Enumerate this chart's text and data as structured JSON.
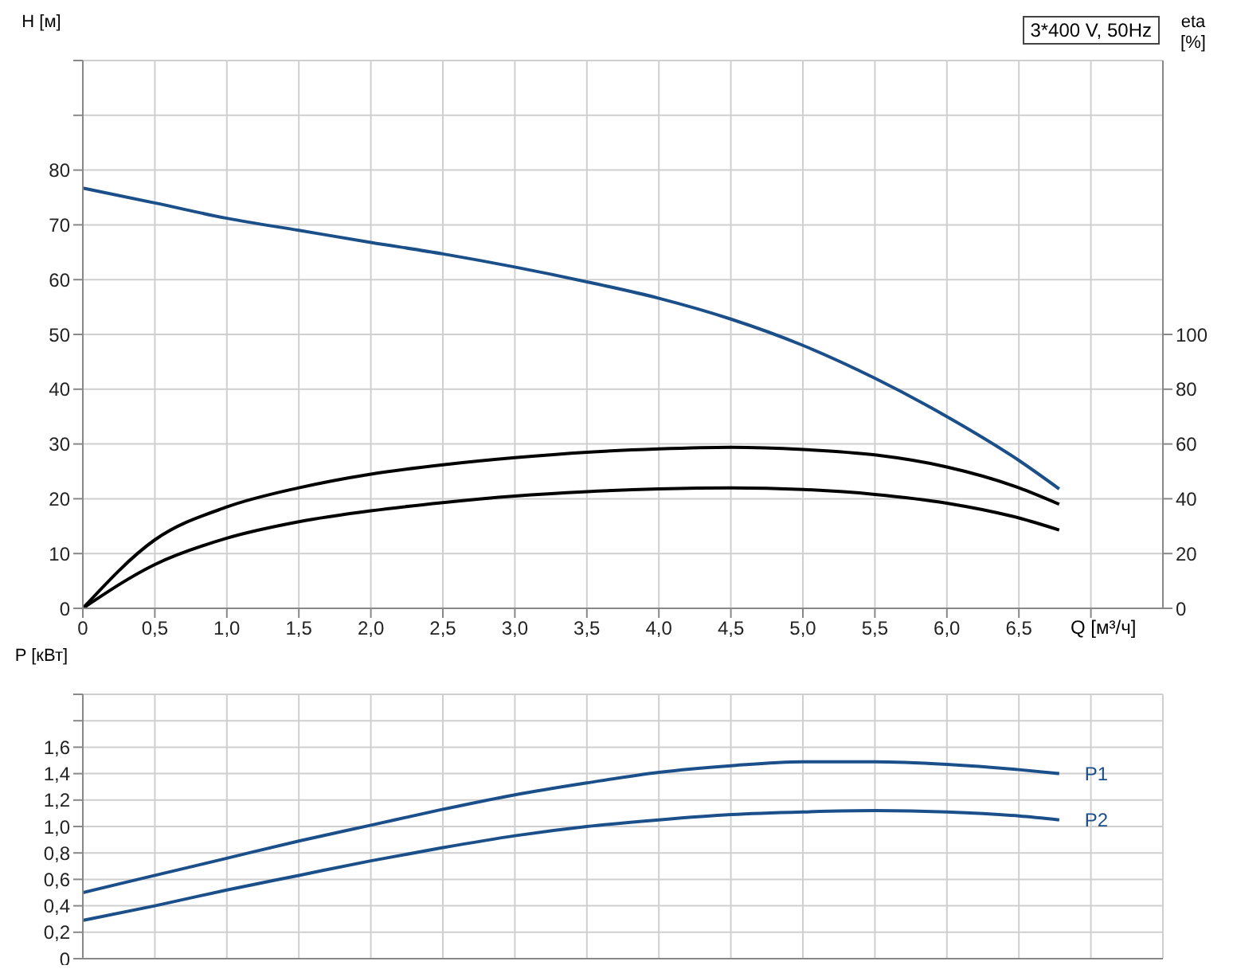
{
  "chart_data": [
    {
      "type": "line",
      "title": "3*400 V, 50Hz",
      "xlabel": "Q [м³/ч]",
      "ylabel": "H [м]",
      "y2label": "eta [%]",
      "grid": true,
      "x": [
        0,
        0.5,
        1,
        1.5,
        2,
        2.5,
        3,
        3.5,
        4,
        4.5,
        5,
        5.5,
        6,
        6.5,
        6.78
      ],
      "xlim": [
        0,
        7.5
      ],
      "xticks": [
        0,
        {
          "value": 0.5,
          "label": "0,5"
        },
        {
          "value": 1,
          "label": "1,0"
        },
        {
          "value": 1.5,
          "label": "1,5"
        },
        {
          "value": 2,
          "label": "2,0"
        },
        {
          "value": 2.5,
          "label": "2,5"
        },
        {
          "value": 3,
          "label": "3,0"
        },
        {
          "value": 3.5,
          "label": "3,5"
        },
        {
          "value": 4,
          "label": "4,0"
        },
        {
          "value": 4.5,
          "label": "4,5"
        },
        {
          "value": 5,
          "label": "5,0"
        },
        {
          "value": 5.5,
          "label": "5,5"
        },
        {
          "value": 6,
          "label": "6,0"
        },
        {
          "value": 6.5,
          "label": "6,5"
        },
        {
          "value": 7,
          "label": null
        }
      ],
      "ylim": [
        0,
        100
      ],
      "yticks": [
        0,
        10,
        20,
        30,
        40,
        50,
        60,
        70,
        80,
        {
          "value": 90,
          "label": null
        },
        {
          "value": 100,
          "label": null
        }
      ],
      "y2lim": [
        0,
        200
      ],
      "y2ticks": [
        0,
        20,
        40,
        60,
        80,
        100
      ],
      "series": [
        {
          "color": "#1b4f8a",
          "values": [
            76.7,
            74,
            71.2,
            69,
            66.8,
            64.7,
            62.3,
            59.6,
            56.6,
            52.8,
            48,
            42,
            35,
            27,
            21.8
          ]
        },
        {
          "color": "#000000",
          "axis": "y2",
          "values": [
            0,
            25,
            37,
            44,
            49,
            52.4,
            55,
            57,
            58.2,
            58.8,
            58,
            56,
            51.6,
            44,
            38
          ]
        },
        {
          "color": "#000000",
          "axis": "y2",
          "values": [
            0,
            16,
            25.6,
            31.6,
            35.6,
            38.6,
            41,
            42.6,
            43.6,
            44,
            43.4,
            41.6,
            38.4,
            33,
            28.6
          ]
        }
      ]
    },
    {
      "type": "line",
      "ylabel": "P [кВт]",
      "grid": true,
      "tick_labels": "y",
      "x": [
        0,
        0.5,
        1,
        1.5,
        2,
        2.5,
        3,
        3.5,
        4,
        4.5,
        5,
        5.5,
        6,
        6.5,
        6.78
      ],
      "xlim": [
        0,
        7.5
      ],
      "xticks": [
        0,
        0.5,
        1,
        1.5,
        2,
        2.5,
        3,
        3.5,
        4,
        4.5,
        5,
        5.5,
        6,
        6.5,
        7
      ],
      "ylim": [
        0,
        2
      ],
      "yticks": [
        0,
        {
          "value": 0.2,
          "label": "0,2"
        },
        {
          "value": 0.4,
          "label": "0,4"
        },
        {
          "value": 0.6,
          "label": "0,6"
        },
        {
          "value": 0.8,
          "label": "0,8"
        },
        {
          "value": 1,
          "label": "1,0"
        },
        {
          "value": 1.2,
          "label": "1,2"
        },
        {
          "value": 1.4,
          "label": "1,4"
        },
        {
          "value": 1.6,
          "label": "1,6"
        },
        {
          "value": 1.8,
          "label": null
        },
        {
          "value": 2,
          "label": null
        }
      ],
      "series": [
        {
          "name": "P1",
          "color": "#1b4f8a",
          "values": [
            0.5,
            0.63,
            0.76,
            0.89,
            1.01,
            1.13,
            1.24,
            1.33,
            1.41,
            1.46,
            1.49,
            1.49,
            1.47,
            1.43,
            1.4
          ]
        },
        {
          "name": "P2",
          "color": "#1b4f8a",
          "values": [
            0.29,
            0.4,
            0.52,
            0.63,
            0.74,
            0.84,
            0.93,
            1.0,
            1.05,
            1.09,
            1.11,
            1.12,
            1.11,
            1.08,
            1.05
          ]
        }
      ]
    }
  ]
}
